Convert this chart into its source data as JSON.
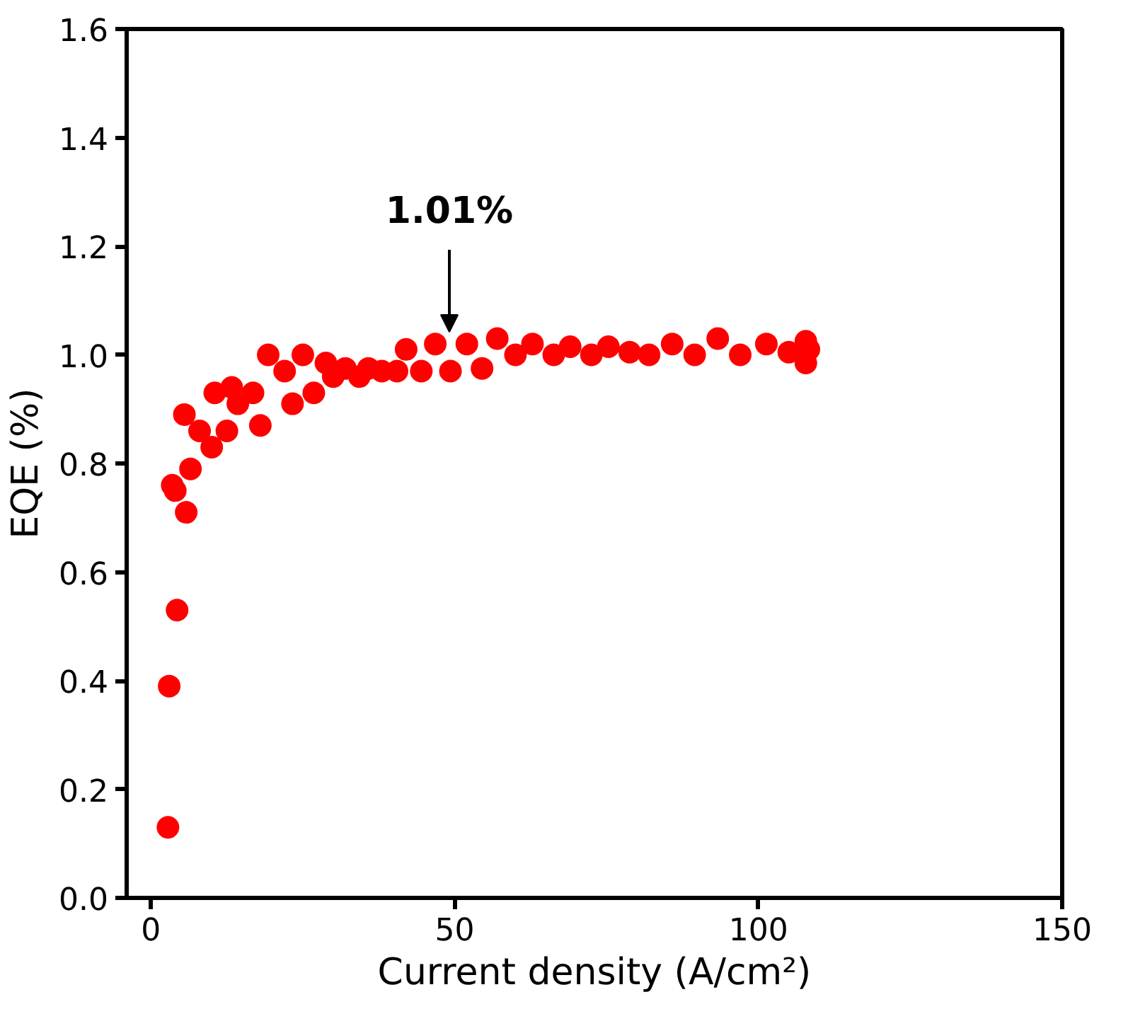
{
  "chart_data": {
    "type": "scatter",
    "xlabel": "Current density (A/cm²)",
    "ylabel": "EQE (%)",
    "xlim": [
      -4,
      150
    ],
    "xticks": [
      0,
      50,
      100,
      150
    ],
    "ylim": [
      0,
      1.6
    ],
    "yticks": [
      {
        "value": 0,
        "label": "0.0"
      },
      {
        "value": 0.2,
        "label": "0.2"
      },
      {
        "value": 0.4,
        "label": "0.4"
      },
      {
        "value": 0.6,
        "label": "0.6"
      },
      {
        "value": 0.8,
        "label": "0.8"
      },
      {
        "value": 1,
        "label": "1.0"
      },
      {
        "value": 1.2,
        "label": "1.2"
      },
      {
        "value": 1.4,
        "label": "1.4"
      },
      {
        "value": 1.6,
        "label": "1.6"
      }
    ],
    "grid": false,
    "marker": "circle",
    "annotations": [
      "1.01%"
    ],
    "series": [
      {
        "color": "#ff0000",
        "x": [
          2.8,
          3,
          4.3,
          3.5,
          4,
          5.8,
          6.5,
          5.5,
          8,
          10,
          12.5,
          10.5,
          13.3,
          16.8,
          14.3,
          18,
          19.3,
          22,
          25,
          23.3,
          26.8,
          28.8,
          30,
          32,
          34.3,
          35.8,
          38,
          40.5,
          42,
          44.5,
          46.8,
          49.3,
          52,
          54.5,
          57,
          60,
          62.8,
          66.3,
          69,
          72.5,
          75.3,
          78.8,
          82,
          85.8,
          89.5,
          93.3,
          97,
          101.3,
          105,
          107.8,
          107.8,
          108.3
        ],
        "values": [
          0.13,
          0.39,
          0.53,
          0.76,
          0.75,
          0.71,
          0.79,
          0.89,
          0.86,
          0.83,
          0.86,
          0.93,
          0.94,
          0.93,
          0.91,
          0.87,
          1.0,
          0.97,
          1.0,
          0.91,
          0.93,
          0.985,
          0.96,
          0.975,
          0.96,
          0.975,
          0.97,
          0.97,
          1.01,
          0.97,
          1.02,
          0.97,
          1.02,
          0.975,
          1.03,
          1.0,
          1.02,
          1.0,
          1.015,
          1.0,
          1.015,
          1.005,
          1.0,
          1.02,
          1.0,
          1.03,
          1.0,
          1.02,
          1.005,
          1.025,
          0.985,
          1.01
        ]
      }
    ]
  }
}
